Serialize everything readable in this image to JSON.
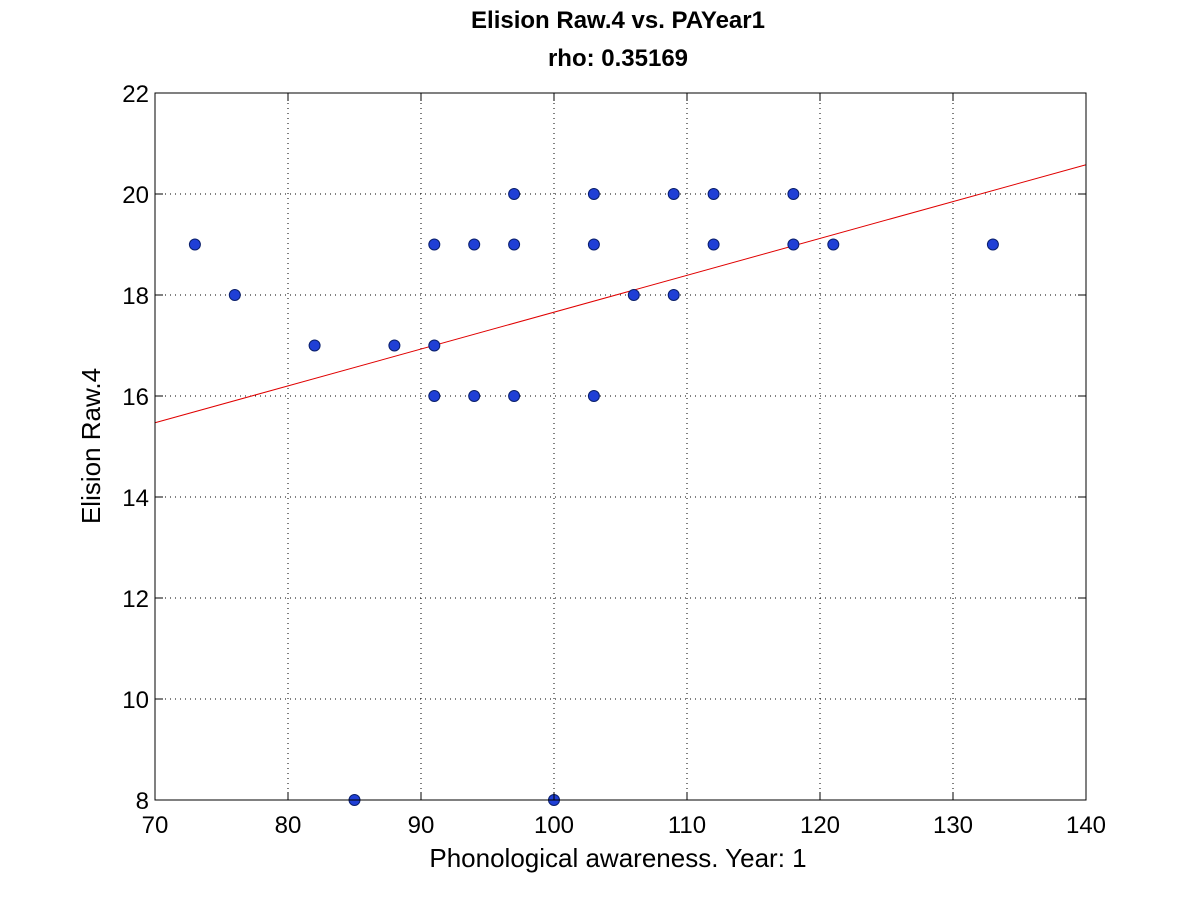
{
  "chart_data": {
    "type": "scatter",
    "title": "Elision Raw.4 vs. PAYear1",
    "subtitle": "rho: 0.35169",
    "xlabel": "Phonological awareness. Year: 1",
    "ylabel": "Elision Raw.4",
    "xlim": [
      70,
      140
    ],
    "ylim": [
      8,
      22
    ],
    "xticks": [
      70,
      80,
      90,
      100,
      110,
      120,
      130,
      140
    ],
    "yticks": [
      8,
      10,
      12,
      14,
      16,
      18,
      20,
      22
    ],
    "grid": true,
    "grid_style": "dotted",
    "marker_color": "#1f3fd6",
    "line_color": "#e00000",
    "points": [
      {
        "x": 73,
        "y": 19
      },
      {
        "x": 76,
        "y": 18
      },
      {
        "x": 82,
        "y": 17
      },
      {
        "x": 85,
        "y": 8
      },
      {
        "x": 88,
        "y": 17
      },
      {
        "x": 91,
        "y": 19
      },
      {
        "x": 91,
        "y": 17
      },
      {
        "x": 91,
        "y": 16
      },
      {
        "x": 94,
        "y": 19
      },
      {
        "x": 94,
        "y": 16
      },
      {
        "x": 97,
        "y": 20
      },
      {
        "x": 97,
        "y": 19
      },
      {
        "x": 97,
        "y": 16
      },
      {
        "x": 100,
        "y": 8
      },
      {
        "x": 103,
        "y": 20
      },
      {
        "x": 103,
        "y": 19
      },
      {
        "x": 103,
        "y": 16
      },
      {
        "x": 106,
        "y": 18
      },
      {
        "x": 109,
        "y": 20
      },
      {
        "x": 109,
        "y": 18
      },
      {
        "x": 112,
        "y": 20
      },
      {
        "x": 112,
        "y": 19
      },
      {
        "x": 118,
        "y": 20
      },
      {
        "x": 118,
        "y": 19
      },
      {
        "x": 121,
        "y": 19
      },
      {
        "x": 133,
        "y": 19
      }
    ],
    "fit_line": {
      "x": [
        70,
        140
      ],
      "y": [
        15.47,
        20.58
      ]
    }
  }
}
